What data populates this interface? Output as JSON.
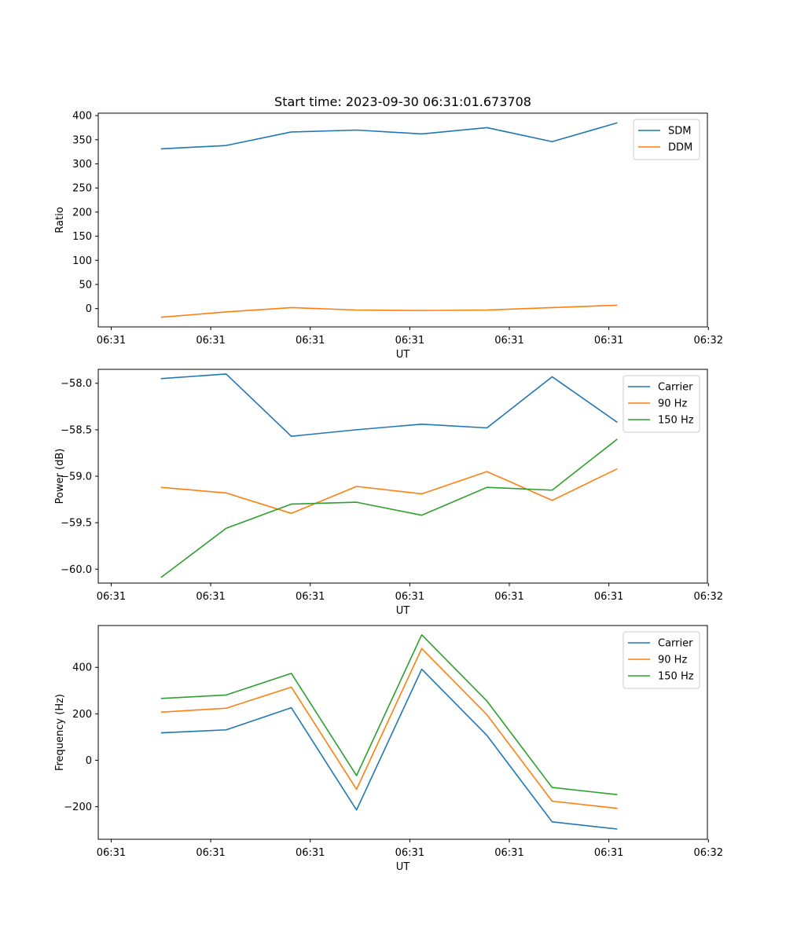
{
  "chart_data": [
    {
      "type": "line",
      "title": "Start time: 2023-09-30 06:31:01.673708",
      "xlabel": "UT",
      "ylabel": "Ratio",
      "x": [
        0.5,
        1.155,
        1.81,
        2.465,
        3.12,
        3.775,
        4.43,
        5.085
      ],
      "xlim": [
        -0.13,
        5.99
      ],
      "xticks": [
        0,
        1,
        2,
        3,
        4,
        5,
        6
      ],
      "xtick_labels": [
        "06:31",
        "06:31",
        "06:31",
        "06:31",
        "06:31",
        "06:31",
        "06:32"
      ],
      "ylim": [
        -38,
        405
      ],
      "yticks": [
        0,
        50,
        100,
        150,
        200,
        250,
        300,
        350,
        400
      ],
      "ytick_labels": [
        "0",
        "50",
        "100",
        "150",
        "200",
        "250",
        "300",
        "350",
        "400"
      ],
      "legend": "top-right",
      "series": [
        {
          "name": "SDM",
          "color": "#1f77b4",
          "values": [
            331,
            338,
            366,
            370,
            362,
            375,
            346,
            385
          ]
        },
        {
          "name": "DDM",
          "color": "#ff7f0e",
          "values": [
            -18,
            -7,
            2,
            -3,
            -4,
            -3,
            2,
            7
          ]
        }
      ]
    },
    {
      "type": "line",
      "title": "",
      "xlabel": "UT",
      "ylabel": "Power (dB)",
      "x": [
        0.5,
        1.155,
        1.81,
        2.465,
        3.12,
        3.775,
        4.43,
        5.085
      ],
      "xlim": [
        -0.13,
        5.99
      ],
      "xticks": [
        0,
        1,
        2,
        3,
        4,
        5,
        6
      ],
      "xtick_labels": [
        "06:31",
        "06:31",
        "06:31",
        "06:31",
        "06:31",
        "06:31",
        "06:32"
      ],
      "ylim": [
        -60.15,
        -57.85
      ],
      "yticks": [
        -58.0,
        -58.5,
        -59.0,
        -59.5,
        -60.0
      ],
      "ytick_labels": [
        "−58.0",
        "−58.5",
        "−59.0",
        "−59.5",
        "−60.0"
      ],
      "legend": "top-right",
      "series": [
        {
          "name": "Carrier",
          "color": "#1f77b4",
          "values": [
            -57.95,
            -57.9,
            -58.57,
            -58.5,
            -58.44,
            -58.48,
            -57.93,
            -58.42
          ]
        },
        {
          "name": "90 Hz",
          "color": "#ff7f0e",
          "values": [
            -59.12,
            -59.18,
            -59.4,
            -59.11,
            -59.19,
            -58.95,
            -59.26,
            -58.92
          ]
        },
        {
          "name": "150 Hz",
          "color": "#2ca02c",
          "values": [
            -60.09,
            -59.56,
            -59.3,
            -59.28,
            -59.42,
            -59.12,
            -59.15,
            -58.6
          ]
        }
      ]
    },
    {
      "type": "line",
      "title": "",
      "xlabel": "UT",
      "ylabel": "Frequency (Hz)",
      "x": [
        0.5,
        1.155,
        1.81,
        2.465,
        3.12,
        3.775,
        4.43,
        5.085
      ],
      "xlim": [
        -0.13,
        5.99
      ],
      "xticks": [
        0,
        1,
        2,
        3,
        4,
        5,
        6
      ],
      "xtick_labels": [
        "06:31",
        "06:31",
        "06:31",
        "06:31",
        "06:31",
        "06:31",
        "06:32"
      ],
      "ylim": [
        -340,
        580
      ],
      "yticks": [
        400,
        200,
        0,
        -200
      ],
      "ytick_labels": [
        "400",
        "200",
        "0",
        "−200"
      ],
      "legend": "top-right",
      "series": [
        {
          "name": "Carrier",
          "color": "#1f77b4",
          "values": [
            118,
            131,
            226,
            -214,
            392,
            107,
            -265,
            -296
          ]
        },
        {
          "name": "90 Hz",
          "color": "#ff7f0e",
          "values": [
            207,
            224,
            315,
            -125,
            481,
            196,
            -176,
            -207
          ]
        },
        {
          "name": "150 Hz",
          "color": "#2ca02c",
          "values": [
            266,
            281,
            374,
            -66,
            540,
            255,
            -117,
            -148
          ]
        }
      ]
    }
  ]
}
